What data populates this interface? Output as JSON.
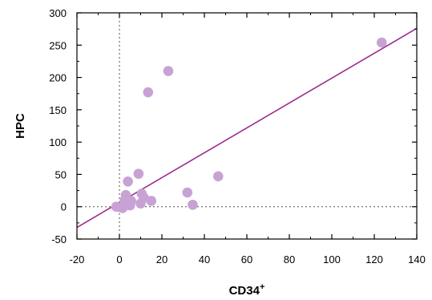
{
  "chart_data": {
    "type": "scatter",
    "title": "",
    "xlabel": "CD34",
    "xlabel_superscript": "+",
    "ylabel": "HPC",
    "xlim": [
      -20,
      140
    ],
    "ylim": [
      -50,
      300
    ],
    "x_ticks": [
      -20,
      0,
      20,
      40,
      60,
      80,
      100,
      120,
      140
    ],
    "y_ticks": [
      -50,
      0,
      50,
      100,
      150,
      200,
      250,
      300
    ],
    "x_tick_labels": [
      "-20",
      "0",
      "20",
      "40",
      "60",
      "80",
      "100",
      "120",
      "140"
    ],
    "y_tick_labels": [
      "-50",
      "0",
      "50",
      "100",
      "150",
      "200",
      "250",
      "300"
    ],
    "grid": false,
    "reference_lines": [
      {
        "orientation": "vertical",
        "value": 0,
        "style": "dotted"
      },
      {
        "orientation": "horizontal",
        "value": 0,
        "style": "dotted"
      }
    ],
    "series": [
      {
        "values": [
          {
            "x": -1.5,
            "y": 0
          },
          {
            "x": 0.5,
            "y": -1
          },
          {
            "x": 1.5,
            "y": -2
          },
          {
            "x": 2.5,
            "y": 10
          },
          {
            "x": 3,
            "y": 18
          },
          {
            "x": 4,
            "y": 39
          },
          {
            "x": 4.5,
            "y": 5
          },
          {
            "x": 5,
            "y": 2
          },
          {
            "x": 5.5,
            "y": 9
          },
          {
            "x": 9,
            "y": 51
          },
          {
            "x": 10,
            "y": 5
          },
          {
            "x": 10.5,
            "y": 20
          },
          {
            "x": 11.5,
            "y": 14
          },
          {
            "x": 13.5,
            "y": 177
          },
          {
            "x": 15,
            "y": 9
          },
          {
            "x": 23,
            "y": 210
          },
          {
            "x": 32,
            "y": 22
          },
          {
            "x": 34.5,
            "y": 3
          },
          {
            "x": 46.5,
            "y": 47
          },
          {
            "x": 123.5,
            "y": 254
          }
        ],
        "color": "#c8a2d4"
      }
    ],
    "fit_line": {
      "x1": -20,
      "y1": -32,
      "x2": 140,
      "y2": 276,
      "color": "#9c2e8e"
    }
  }
}
